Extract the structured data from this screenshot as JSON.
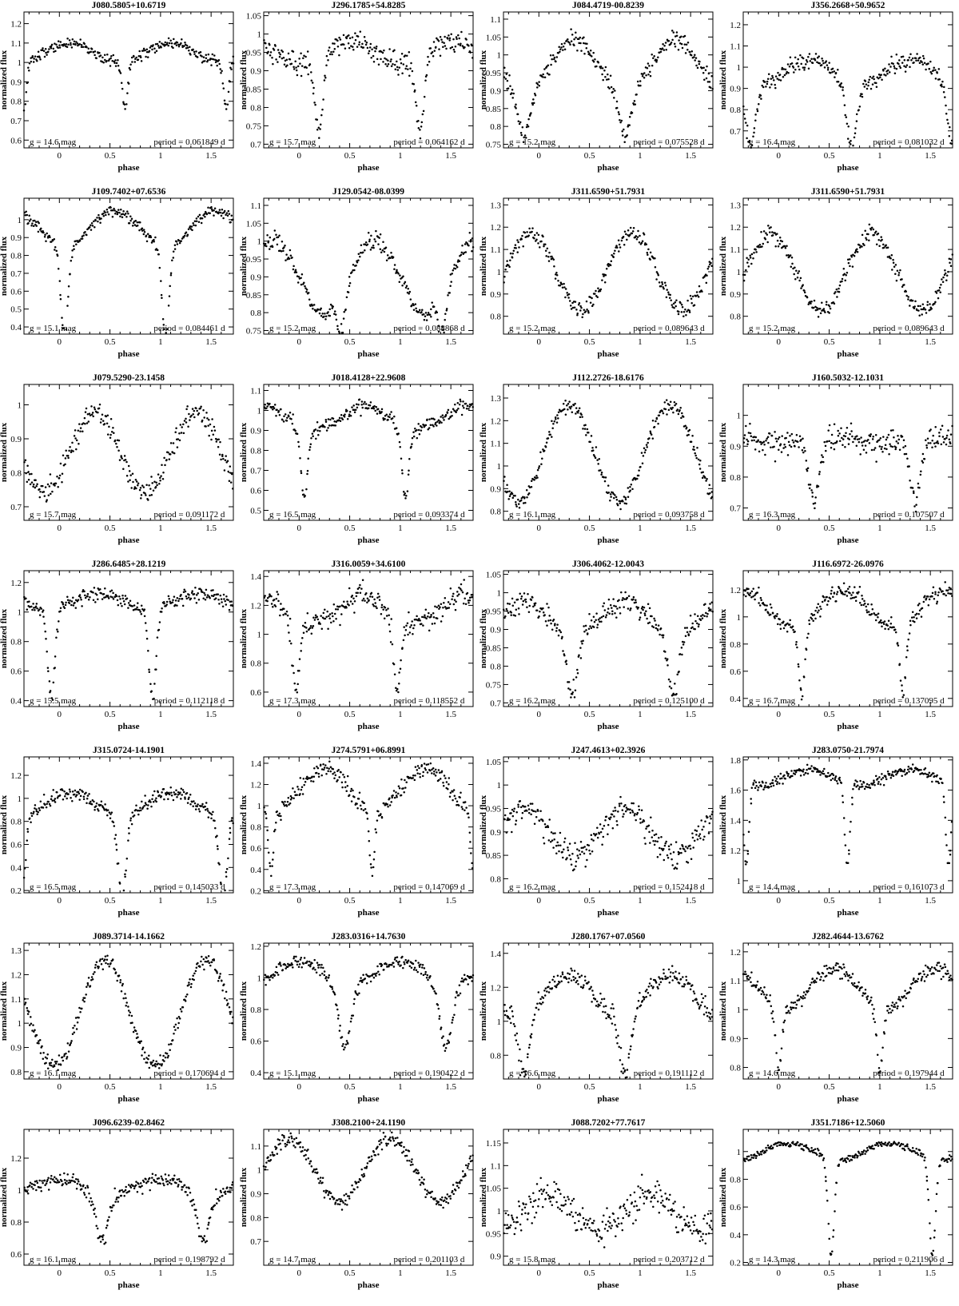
{
  "page": {
    "background": "#ffffff",
    "marker_color": "#000000"
  },
  "panel_common": {
    "xlabel": "phase",
    "ylabel": "normalized flux",
    "xlim": [
      -0.35,
      1.72
    ],
    "xticks": [
      0,
      0.5,
      1,
      1.5
    ]
  },
  "chart_data": [
    {
      "type": "scatter",
      "title": "J080.5805+10.6719",
      "g_text": "g = 14.6 mag",
      "period_text": "period = 0.061849 d",
      "ylim": [
        0.56,
        1.26
      ],
      "yticks": [
        0.6,
        0.7,
        0.8,
        0.9,
        1,
        1.1,
        1.2
      ],
      "curve": {
        "base": 1.05,
        "amp": 0.05,
        "peak": 0.1,
        "sine": 1,
        "eclipses": [
          {
            "c": 0.65,
            "w": 0.025,
            "d": 0.25
          }
        ]
      },
      "noise": 0.025
    },
    {
      "type": "scatter",
      "title": "J296.1785+54.8285",
      "g_text": "g = 15.7 mag",
      "period_text": "period = 0.064162 d",
      "ylim": [
        0.69,
        1.06
      ],
      "yticks": [
        0.7,
        0.75,
        0.8,
        0.85,
        0.9,
        0.95,
        1,
        1.05
      ],
      "curve": {
        "base": 0.95,
        "amp": 0.03,
        "peak": 0.5,
        "sine": 1,
        "eclipses": [
          {
            "c": 0.2,
            "w": 0.04,
            "d": 0.21
          }
        ]
      },
      "noise": 0.025
    },
    {
      "type": "scatter",
      "title": "J084.4719-00.8239",
      "g_text": "g = 15.2 mag",
      "period_text": "period = 0.075528 d",
      "ylim": [
        0.74,
        1.12
      ],
      "yticks": [
        0.75,
        0.8,
        0.85,
        0.9,
        0.95,
        1,
        1.05,
        1.1
      ],
      "curve": {
        "base": 0.97,
        "amp": 0.07,
        "peak": 0.35,
        "sine": 1,
        "eclipses": [
          {
            "c": 0.85,
            "w": 0.06,
            "d": 0.12
          }
        ]
      },
      "noise": 0.02
    },
    {
      "type": "scatter",
      "title": "J356.2668+50.9652",
      "g_text": "g = 16.4 mag",
      "period_text": "period = 0.081032 d",
      "ylim": [
        0.62,
        1.26
      ],
      "yticks": [
        0.7,
        0.8,
        0.9,
        1,
        1.1,
        1.2
      ],
      "curve": {
        "base": 0.98,
        "amp": 0.06,
        "peak": 0.3,
        "sine": 1,
        "eclipses": [
          {
            "c": 0.72,
            "w": 0.05,
            "d": 0.3
          }
        ]
      },
      "noise": 0.035
    },
    {
      "type": "scatter",
      "title": "J109.7402+07.6536",
      "g_text": "g = 15.1 mag",
      "period_text": "period = 0.084461 d",
      "ylim": [
        0.36,
        1.12
      ],
      "yticks": [
        0.4,
        0.5,
        0.6,
        0.7,
        0.8,
        0.9,
        1
      ],
      "curve": {
        "base": 0.95,
        "amp": 0.1,
        "peak": 0.55,
        "sine": 1,
        "eclipses": [
          {
            "c": 0.05,
            "w": 0.035,
            "d": 0.5
          }
        ]
      },
      "noise": 0.025
    },
    {
      "type": "scatter",
      "title": "J129.0542-08.0399",
      "g_text": "g = 15.2 mag",
      "period_text": "period = 0.088868 d",
      "ylim": [
        0.74,
        1.12
      ],
      "yticks": [
        0.75,
        0.8,
        0.85,
        0.9,
        0.95,
        1,
        1.05,
        1.1
      ],
      "curve": {
        "base": 0.9,
        "amp": 0.1,
        "peak": 0.75,
        "sine": 1,
        "eclipses": [
          {
            "c": 0.42,
            "w": 0.04,
            "d": 0.1
          }
        ]
      },
      "noise": 0.02
    },
    {
      "type": "scatter",
      "title": "J311.6590+51.7931",
      "g_text": "g = 15.2 mag",
      "period_text": "period = 0.089643 d",
      "ylim": [
        0.72,
        1.33
      ],
      "yticks": [
        0.8,
        0.9,
        1,
        1.1,
        1.2,
        1.3
      ],
      "curve": {
        "base": 1.0,
        "amp": 0.17,
        "peak": 0.92,
        "sine": 1,
        "eclipses": []
      },
      "noise": 0.03
    },
    {
      "type": "scatter",
      "title": "J311.6590+51.7931",
      "g_text": "g = 15.2 mag",
      "period_text": "period = 0.089643 d",
      "ylim": [
        0.72,
        1.33
      ],
      "yticks": [
        0.8,
        0.9,
        1,
        1.1,
        1.2,
        1.3
      ],
      "curve": {
        "base": 1.0,
        "amp": 0.17,
        "peak": 0.92,
        "sine": 1,
        "eclipses": []
      },
      "noise": 0.03
    },
    {
      "type": "scatter",
      "title": "J079.5290-23.1458",
      "g_text": "g = 15.7 mag",
      "period_text": "period = 0.091172 d",
      "ylim": [
        0.66,
        1.06
      ],
      "yticks": [
        0.7,
        0.8,
        0.9,
        1
      ],
      "curve": {
        "base": 0.86,
        "amp": 0.12,
        "peak": 0.35,
        "sine": 1,
        "eclipses": []
      },
      "noise": 0.03
    },
    {
      "type": "scatter",
      "title": "J018.4128+22.9608",
      "g_text": "g = 16.5 mag",
      "period_text": "period = 0.093374 d",
      "ylim": [
        0.45,
        1.13
      ],
      "yticks": [
        0.5,
        0.6,
        0.7,
        0.8,
        0.9,
        1,
        1.1
      ],
      "curve": {
        "base": 0.96,
        "amp": 0.06,
        "peak": 0.65,
        "sine": 1,
        "eclipses": [
          {
            "c": 0.05,
            "w": 0.035,
            "d": 0.35
          }
        ]
      },
      "noise": 0.03
    },
    {
      "type": "scatter",
      "title": "J112.2726-18.6176",
      "g_text": "g = 16.1 mag",
      "period_text": "period = 0.093758 d",
      "ylim": [
        0.76,
        1.36
      ],
      "yticks": [
        0.8,
        0.9,
        1,
        1.1,
        1.2,
        1.3
      ],
      "curve": {
        "base": 1.06,
        "amp": 0.21,
        "peak": 0.3,
        "sine": 1,
        "eclipses": []
      },
      "noise": 0.03
    },
    {
      "type": "scatter",
      "title": "J160.5032-12.1031",
      "g_text": "g = 16.3 mag",
      "period_text": "period = 0.107507 d",
      "ylim": [
        0.66,
        1.1
      ],
      "yticks": [
        0.7,
        0.8,
        0.9,
        1
      ],
      "curve": {
        "base": 0.92,
        "amp": 0.01,
        "peak": 0.6,
        "sine": 1,
        "eclipses": [
          {
            "c": 0.35,
            "w": 0.05,
            "d": 0.2
          }
        ]
      },
      "noise": 0.035
    },
    {
      "type": "scatter",
      "title": "J286.6485+28.1219",
      "g_text": "g = 15.5 mag",
      "period_text": "period = 0.112118 d",
      "ylim": [
        0.36,
        1.28
      ],
      "yticks": [
        0.4,
        0.6,
        0.8,
        1,
        1.2
      ],
      "curve": {
        "base": 1.07,
        "amp": 0.05,
        "peak": 0.4,
        "sine": 1,
        "eclipses": [
          {
            "c": 0.92,
            "w": 0.035,
            "d": 0.62
          }
        ]
      },
      "noise": 0.04
    },
    {
      "type": "scatter",
      "title": "J316.0059+34.6100",
      "g_text": "g = 17.3 mag",
      "period_text": "period = 0.118552 d",
      "ylim": [
        0.5,
        1.44
      ],
      "yticks": [
        0.6,
        0.8,
        1,
        1.2,
        1.4
      ],
      "curve": {
        "base": 1.17,
        "amp": 0.1,
        "peak": 0.62,
        "sine": 1,
        "eclipses": [
          {
            "c": 0.97,
            "w": 0.035,
            "d": 0.5
          }
        ]
      },
      "noise": 0.07
    },
    {
      "type": "scatter",
      "title": "J306.4062-12.0043",
      "g_text": "g = 16.2 mag",
      "period_text": "period = 0.125100 d",
      "ylim": [
        0.69,
        1.06
      ],
      "yticks": [
        0.7,
        0.75,
        0.8,
        0.85,
        0.9,
        0.95,
        1,
        1.05
      ],
      "curve": {
        "base": 0.93,
        "amp": 0.04,
        "peak": 0.85,
        "sine": 1,
        "eclipses": [
          {
            "c": 0.33,
            "w": 0.05,
            "d": 0.17
          }
        ]
      },
      "noise": 0.025
    },
    {
      "type": "scatter",
      "title": "J116.6972-26.0976",
      "g_text": "g = 16.7 mag",
      "period_text": "period = 0.137095 d",
      "ylim": [
        0.34,
        1.34
      ],
      "yticks": [
        0.4,
        0.6,
        0.8,
        1,
        1.2
      ],
      "curve": {
        "base": 1.05,
        "amp": 0.14,
        "peak": 0.65,
        "sine": 1,
        "eclipses": [
          {
            "c": 0.23,
            "w": 0.03,
            "d": 0.5
          }
        ]
      },
      "noise": 0.05
    },
    {
      "type": "scatter",
      "title": "J315.0724-14.1901",
      "g_text": "g = 16.5 mag",
      "period_text": "period = 0.145033 d",
      "ylim": [
        0.18,
        1.36
      ],
      "yticks": [
        0.2,
        0.4,
        0.6,
        0.8,
        1,
        1.2
      ],
      "curve": {
        "base": 0.95,
        "amp": 0.1,
        "peak": 0.1,
        "sine": 1,
        "eclipses": [
          {
            "c": 0.62,
            "w": 0.04,
            "d": 0.7
          }
        ]
      },
      "noise": 0.05
    },
    {
      "type": "scatter",
      "title": "J274.5791+06.8991",
      "g_text": "g = 17.3 mag",
      "period_text": "period = 0.147069 d",
      "ylim": [
        0.18,
        1.46
      ],
      "yticks": [
        0.2,
        0.4,
        0.6,
        0.8,
        1,
        1.2,
        1.4
      ],
      "curve": {
        "base": 1.15,
        "amp": 0.2,
        "peak": 0.25,
        "sine": 1,
        "eclipses": [
          {
            "c": 0.72,
            "w": 0.025,
            "d": 0.6
          }
        ]
      },
      "noise": 0.07
    },
    {
      "type": "scatter",
      "title": "J247.4613+02.3926",
      "g_text": "g = 16.2 mag",
      "period_text": "period = 0.152418 d",
      "ylim": [
        0.77,
        1.06
      ],
      "yticks": [
        0.8,
        0.85,
        0.9,
        0.95,
        1,
        1.05
      ],
      "curve": {
        "base": 0.9,
        "amp": 0.05,
        "peak": 0.85,
        "sine": 1,
        "eclipses": []
      },
      "noise": 0.025
    },
    {
      "type": "scatter",
      "title": "J283.0750-21.7974",
      "g_text": "g = 14.4 mag",
      "period_text": "period = 0.161073 d",
      "ylim": [
        0.92,
        1.82
      ],
      "yticks": [
        1,
        1.2,
        1.4,
        1.6,
        1.8
      ],
      "curve": {
        "base": 1.68,
        "amp": 0.05,
        "peak": 0.3,
        "sine": 1,
        "eclipses": [
          {
            "c": 0.68,
            "w": 0.025,
            "d": 0.55
          }
        ]
      },
      "noise": 0.03
    },
    {
      "type": "scatter",
      "title": "J089.3714-14.1662",
      "g_text": "g = 16.1 mag",
      "period_text": "period = 0.170694 d",
      "ylim": [
        0.77,
        1.33
      ],
      "yticks": [
        0.8,
        0.9,
        1,
        1.1,
        1.2,
        1.3
      ],
      "curve": {
        "base": 1.04,
        "amp": 0.22,
        "peak": 0.45,
        "sine": 1,
        "eclipses": []
      },
      "noise": 0.025
    },
    {
      "type": "scatter",
      "title": "J283.0316+14.7630",
      "g_text": "g = 15.1 mag",
      "period_text": "period = 0.190422 d",
      "ylim": [
        0.36,
        1.22
      ],
      "yticks": [
        0.4,
        0.6,
        0.8,
        1,
        1.2
      ],
      "curve": {
        "base": 1.03,
        "amp": 0.08,
        "peak": 0.0,
        "sine": 1,
        "eclipses": [
          {
            "c": 0.45,
            "w": 0.06,
            "d": 0.4
          }
        ]
      },
      "noise": 0.03
    },
    {
      "type": "scatter",
      "title": "J280.1767+07.0560",
      "g_text": "g = 16.6 mag",
      "period_text": "period = 0.191112 d",
      "ylim": [
        0.66,
        1.46
      ],
      "yticks": [
        0.8,
        1,
        1.2,
        1.4
      ],
      "curve": {
        "base": 1.15,
        "amp": 0.12,
        "peak": 0.3,
        "sine": 1,
        "eclipses": [
          {
            "c": 0.85,
            "w": 0.05,
            "d": 0.35
          }
        ]
      },
      "noise": 0.05
    },
    {
      "type": "scatter",
      "title": "J282.4644-13.6762",
      "g_text": "g = 14.6 mag",
      "period_text": "period = 0.197944 d",
      "ylim": [
        0.76,
        1.23
      ],
      "yticks": [
        0.8,
        0.9,
        1,
        1.1,
        1.2
      ],
      "curve": {
        "base": 1.07,
        "amp": 0.07,
        "peak": 0.55,
        "sine": 1,
        "eclipses": [
          {
            "c": 0.0,
            "w": 0.03,
            "d": 0.22
          }
        ]
      },
      "noise": 0.02
    },
    {
      "type": "scatter",
      "title": "J096.6239-02.8462",
      "g_text": "g = 16.1 mag",
      "period_text": "period = 0.198792 d",
      "ylim": [
        0.53,
        1.38
      ],
      "yticks": [
        0.6,
        0.8,
        1,
        1.2
      ],
      "curve": {
        "base": 1.02,
        "amp": 0.04,
        "peak": 0.0,
        "sine": 1,
        "eclipses": [
          {
            "c": 0.42,
            "w": 0.06,
            "d": 0.3
          }
        ]
      },
      "noise": 0.04
    },
    {
      "type": "scatter",
      "title": "J308.2100+24.1190",
      "g_text": "g = 14.7 mag",
      "period_text": "period = 0.201103 d",
      "ylim": [
        0.6,
        1.17
      ],
      "yticks": [
        0.7,
        0.8,
        0.9,
        1,
        1.1
      ],
      "curve": {
        "base": 1.0,
        "amp": 0.13,
        "peak": 0.9,
        "sine": 1,
        "eclipses": []
      },
      "noise": 0.025
    },
    {
      "type": "scatter",
      "title": "J088.7202+77.7617",
      "g_text": "g = 15.8 mag",
      "period_text": "period = 0.203712 d",
      "ylim": [
        0.88,
        1.18
      ],
      "yticks": [
        0.9,
        0.95,
        1,
        1.05,
        1.1,
        1.15
      ],
      "curve": {
        "base": 1.0,
        "amp": 0.04,
        "peak": 0.1,
        "sine": 1,
        "eclipses": []
      },
      "noise": 0.03
    },
    {
      "type": "scatter",
      "title": "J351.7186+12.5060",
      "g_text": "g = 14.3 mag",
      "period_text": "period = 0.211906 d",
      "ylim": [
        0.18,
        1.16
      ],
      "yticks": [
        0.2,
        0.4,
        0.6,
        0.8,
        1
      ],
      "curve": {
        "base": 1.0,
        "amp": 0.06,
        "peak": 0.1,
        "sine": 1,
        "eclipses": [
          {
            "c": 0.52,
            "w": 0.03,
            "d": 0.7
          }
        ]
      },
      "noise": 0.02
    }
  ]
}
